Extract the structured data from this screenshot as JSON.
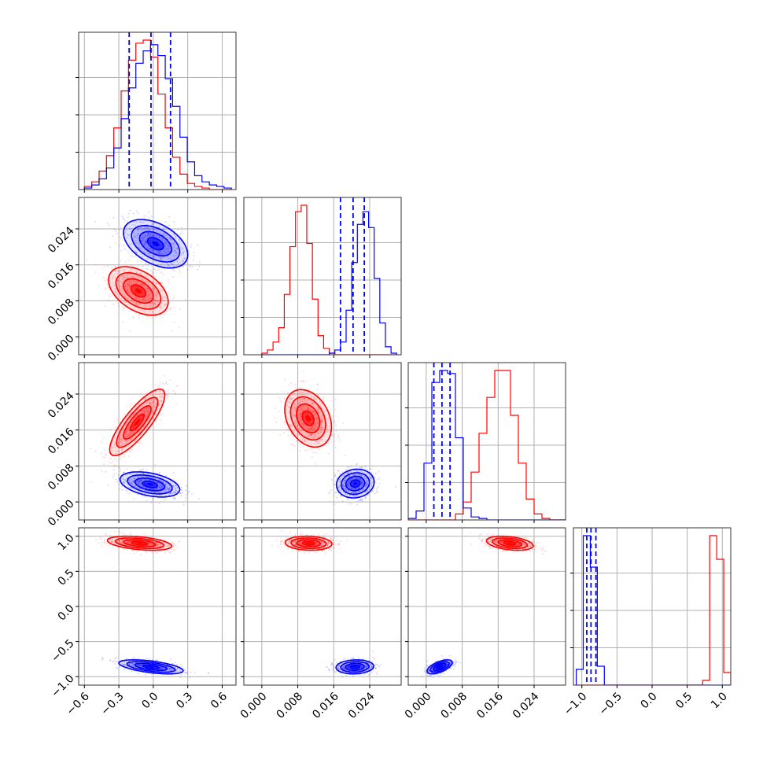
{
  "chart_data": {
    "type": "corner",
    "colors": {
      "red": "#ff0000",
      "blue": "#0000ff"
    },
    "parameters": [
      {
        "range": [
          -0.65,
          0.72
        ],
        "ticks": [
          "−0.6",
          "−0.3",
          "0.0",
          "0.3",
          "0.6"
        ],
        "tick_values": [
          -0.6,
          -0.3,
          0.0,
          0.3,
          0.6
        ]
      },
      {
        "range": [
          -0.004,
          0.031
        ],
        "ticks": [
          "0.000",
          "0.008",
          "0.016",
          "0.024"
        ],
        "tick_values": [
          0.0,
          0.008,
          0.016,
          0.024
        ]
      },
      {
        "range": [
          -0.004,
          0.031
        ],
        "ticks": [
          "0.000",
          "0.008",
          "0.016",
          "0.024"
        ],
        "tick_values": [
          0.0,
          0.008,
          0.016,
          0.024
        ]
      },
      {
        "range": [
          -1.12,
          1.12
        ],
        "ticks": [
          "−1.0",
          "−0.5",
          "0.0",
          "0.5",
          "1.0"
        ],
        "tick_values": [
          -1.0,
          -0.5,
          0.0,
          0.5,
          1.0
        ]
      }
    ],
    "quantiles_blue": [
      [
        -0.21,
        -0.02,
        0.15
      ],
      [
        0.0175,
        0.0203,
        0.0228
      ],
      [
        0.0017,
        0.0035,
        0.0053
      ],
      [
        -0.93,
        -0.87,
        -0.8
      ]
    ],
    "histograms": [
      {
        "blue": {
          "edges": [
            -0.6,
            0.68
          ],
          "counts": [
            1,
            3,
            7,
            14,
            27,
            46,
            66,
            82,
            90,
            94,
            87,
            72,
            54,
            34,
            18,
            9,
            5,
            3,
            2,
            1
          ]
        },
        "red": {
          "edges": [
            -0.6,
            0.68
          ],
          "counts": [
            2,
            5,
            12,
            22,
            40,
            64,
            84,
            95,
            97,
            86,
            62,
            40,
            21,
            10,
            4,
            2,
            1,
            0,
            0,
            0
          ]
        }
      },
      {
        "blue": {
          "edges": [
            0.0,
            0.03
          ],
          "counts": [
            0,
            0,
            0,
            0,
            0,
            0,
            0,
            0,
            0,
            0,
            0,
            0,
            1,
            3,
            8,
            28,
            58,
            82,
            90,
            80,
            48,
            20,
            5,
            1
          ]
        },
        "red": {
          "edges": [
            0.0,
            0.03
          ],
          "counts": [
            1,
            3,
            8,
            17,
            38,
            68,
            90,
            94,
            70,
            35,
            12,
            4,
            1,
            0,
            0,
            0,
            0,
            0,
            0,
            0,
            0,
            0,
            0,
            0
          ]
        }
      },
      {
        "blue": {
          "edges": [
            -0.004,
            0.031
          ],
          "counts": [
            1,
            6,
            38,
            92,
            100,
            98,
            55,
            8,
            2,
            1,
            0,
            0,
            0,
            0,
            0,
            0,
            0,
            0,
            0,
            0
          ]
        },
        "red": {
          "edges": [
            -0.004,
            0.031
          ],
          "counts": [
            0,
            0,
            0,
            0,
            0,
            0,
            4,
            12,
            32,
            58,
            82,
            100,
            100,
            70,
            38,
            14,
            4,
            1,
            0,
            0
          ]
        }
      },
      {
        "blue": {
          "edges": [
            -1.08,
            1.12
          ],
          "counts": [
            10,
            95,
            75,
            12,
            0,
            0,
            0,
            0,
            0,
            0,
            0,
            0,
            0,
            0,
            0,
            0,
            0,
            0,
            0,
            0,
            0,
            0
          ]
        },
        "red": {
          "edges": [
            -1.08,
            1.12
          ],
          "counts": [
            0,
            0,
            0,
            0,
            0,
            0,
            0,
            0,
            0,
            0,
            0,
            0,
            0,
            0,
            0,
            0,
            0,
            0,
            3,
            95,
            80,
            8
          ]
        }
      }
    ],
    "pairs": [
      {
        "row": 1,
        "col": 0,
        "blue": {
          "mean": [
            0.02,
            0.0207
          ],
          "sd": [
            0.14,
            0.0027
          ],
          "rho": -0.45
        },
        "red": {
          "mean": [
            -0.13,
            0.0102
          ],
          "sd": [
            0.13,
            0.0027
          ],
          "rho": -0.45
        }
      },
      {
        "row": 2,
        "col": 0,
        "blue": {
          "mean": [
            -0.03,
            0.0039
          ],
          "sd": [
            0.13,
            0.0014
          ],
          "rho": -0.4
        },
        "red": {
          "mean": [
            -0.14,
            0.0177
          ],
          "sd": [
            0.12,
            0.0037
          ],
          "rho": 0.82
        }
      },
      {
        "row": 2,
        "col": 1,
        "blue": {
          "mean": [
            0.0208,
            0.0041
          ],
          "sd": [
            0.0021,
            0.0016
          ],
          "rho": 0.1
        },
        "red": {
          "mean": [
            0.0103,
            0.0186
          ],
          "sd": [
            0.0026,
            0.0032
          ],
          "rho": -0.3
        }
      },
      {
        "row": 3,
        "col": 0,
        "blue": {
          "mean": [
            -0.02,
            -0.86
          ],
          "sd": [
            0.14,
            0.05
          ],
          "rho": -0.55
        },
        "red": {
          "mean": [
            -0.12,
            0.9
          ],
          "sd": [
            0.14,
            0.05
          ],
          "rho": -0.4
        }
      },
      {
        "row": 3,
        "col": 1,
        "blue": {
          "mean": [
            0.0207,
            -0.86
          ],
          "sd": [
            0.0021,
            0.05
          ],
          "rho": 0.1
        },
        "red": {
          "mean": [
            0.0104,
            0.9
          ],
          "sd": [
            0.0026,
            0.05
          ],
          "rho": -0.1
        }
      },
      {
        "row": 3,
        "col": 2,
        "blue": {
          "mean": [
            0.003,
            -0.86
          ],
          "sd": [
            0.0014,
            0.05
          ],
          "rho": 0.6
        },
        "red": {
          "mean": [
            0.0186,
            0.9
          ],
          "sd": [
            0.0026,
            0.05
          ],
          "rho": -0.35
        }
      }
    ]
  }
}
